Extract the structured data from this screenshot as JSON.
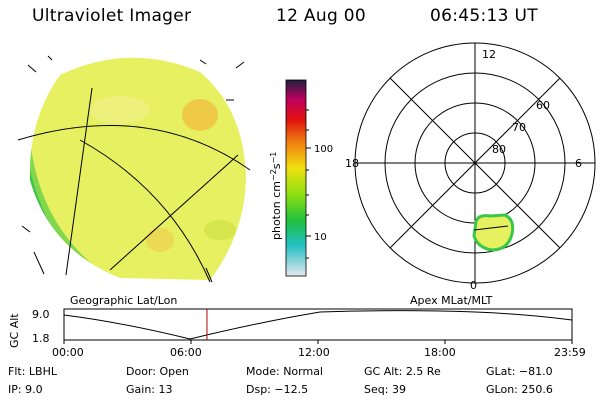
{
  "header": {
    "instrument": "Ultraviolet Imager",
    "date": "12 Aug 00",
    "time": "06:45:13 UT"
  },
  "colorbar": {
    "unit_text": "photon cm",
    "unit_sup1": "−2",
    "unit_mid": "s",
    "unit_sup2": "−1",
    "ticks": [
      "100",
      "10"
    ]
  },
  "panels": {
    "left_label": "Geographic Lat/Lon",
    "right_label": "Apex MLat/MLT"
  },
  "polar": {
    "mlt_labels": {
      "top": "12",
      "left": "18",
      "right": "6",
      "bottom": "0"
    },
    "lat_labels": [
      "60",
      "70",
      "80"
    ]
  },
  "alt_plot": {
    "ylabel": "GC Alt",
    "yticks": [
      "9.0",
      "1.8"
    ],
    "xticks": [
      "00:00",
      "06:00",
      "12:00",
      "18:00",
      "23:59"
    ],
    "marker_time_hours": 6.754
  },
  "info": {
    "flt_label": "Flt:",
    "flt_value": "LBHL",
    "ip_label": "IP:",
    "ip_value": "9.0",
    "door_label": "Door:",
    "door_value": "Open",
    "gain_label": "Gain:",
    "gain_value": "13",
    "mode_label": "Mode:",
    "mode_value": "Normal",
    "dsp_label": "Dsp:",
    "dsp_value": "−12.5",
    "gcalt_label": "GC Alt:",
    "gcalt_value": "2.5 Re",
    "seq_label": "Seq:",
    "seq_value": "39",
    "glat_label": "GLat:",
    "glat_value": "−81.0",
    "glon_label": "GLon:",
    "glon_value": "250.6"
  },
  "colors": {
    "earth_fill": "#e6f060",
    "accent_green": "#39c84a",
    "marker_red": "#b00000"
  }
}
